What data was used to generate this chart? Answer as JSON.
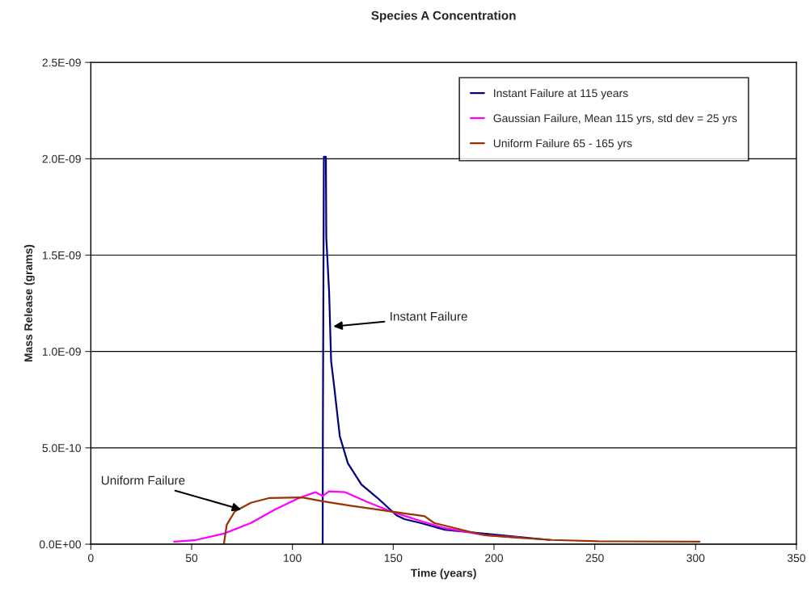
{
  "chart_data": {
    "type": "line",
    "title": "Species A Concentration",
    "xlabel": "Time (years)",
    "ylabel": "Mass Release (grams)",
    "xlim": [
      0,
      350
    ],
    "xticks": [
      0,
      50,
      100,
      150,
      200,
      250,
      300,
      350
    ],
    "ylim": [
      0,
      2.5e-09
    ],
    "yticks": [
      {
        "value": 0,
        "label": "0.0E+00"
      },
      {
        "value": 5e-10,
        "label": "5.0E-10"
      },
      {
        "value": 1e-09,
        "label": "1.0E-09"
      },
      {
        "value": 1.5e-09,
        "label": "1.5E-09"
      },
      {
        "value": 2e-09,
        "label": "2.0E-09"
      },
      {
        "value": 2.5e-09,
        "label": "2.5E-09"
      }
    ],
    "grid": "y",
    "legend": "top right",
    "marker": "none",
    "line_style": "solid",
    "series": [
      {
        "name": "Instant Failure at 115 years",
        "color": "#000080",
        "x": [
          115,
          115.1,
          115.6,
          116.6,
          116.8,
          118.2,
          119.2,
          120.8,
          123.5,
          127.5,
          134.2,
          142.2,
          151.6,
          155.6,
          163.6,
          175.6,
          195.7,
          227.7
        ],
        "values": [
          0,
          5.6e-10,
          2.01e-09,
          2.01e-09,
          1.59e-09,
          1.31e-09,
          9.5e-10,
          8.1e-10,
          5.6e-10,
          4.2e-10,
          3.1e-10,
          2.4e-10,
          1.5e-10,
          1.3e-10,
          1.1e-10,
          7.5e-11,
          null,
          2.2e-11
        ]
      },
      {
        "name": "Gaussian Failure, Mean 115 yrs, std dev = 25 yrs",
        "color": "#ff00ff",
        "x": [
          41.3,
          51.3,
          66,
          79.4,
          91.4,
          103.4,
          111.5,
          115.1,
          118.1,
          126.2,
          136.9,
          148.9,
          162.3,
          175.6,
          195.7,
          213
        ],
        "values": [
          1.3e-11,
          2e-11,
          5.5e-11,
          1.1e-10,
          1.8e-10,
          2.4e-10,
          2.7e-10,
          2.5e-10,
          2.74e-10,
          2.7e-10,
          2.2e-10,
          1.7e-10,
          1.25e-10,
          8.3e-11,
          4.7e-11,
          3.4e-11
        ]
      },
      {
        "name": "Uniform Failure 65 - 165 yrs",
        "color": "#993300",
        "x": [
          66,
          67.4,
          71.4,
          79.4,
          88.7,
          104.8,
          115.5,
          128.8,
          142.2,
          155.6,
          165.6,
          170.3,
          189,
          195.7,
          203.7,
          214.4,
          229,
          251.8,
          302
        ],
        "values": [
          0,
          1e-10,
          1.7e-10,
          2.15e-10,
          2.4e-10,
          2.43e-10,
          2.22e-10,
          2e-10,
          1.8e-10,
          1.6e-10,
          1.45e-10,
          1.1e-10,
          6.2e-11,
          4.7e-11,
          4e-11,
          3.2e-11,
          2.2e-11,
          1.5e-11,
          1.3e-11
        ]
      }
    ],
    "annotations": [
      {
        "text": "Instant Failure",
        "x": 120.3,
        "y": 1.13e-09
      },
      {
        "text": "Uniform Failure",
        "x": 74.6,
        "y": 1.8e-10
      }
    ]
  }
}
